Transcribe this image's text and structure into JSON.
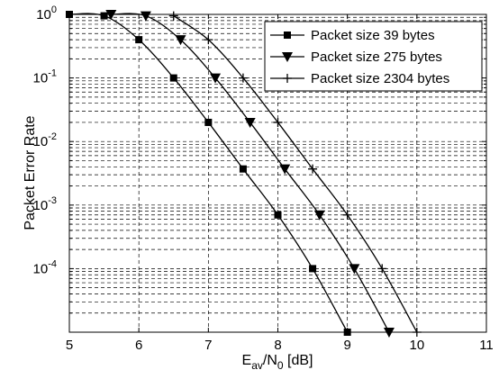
{
  "chart_data": {
    "type": "line",
    "xlabel": {
      "base": "E",
      "sub1": "av",
      "mid": "/N",
      "sub2": "0",
      "tail": " [dB]"
    },
    "ylabel": "Packet Error Rate",
    "xlim": [
      5,
      11
    ],
    "ylim": [
      1e-05,
      1
    ],
    "y_scale": "log",
    "x_ticks": [
      "5",
      "6",
      "7",
      "8",
      "9",
      "10",
      "11"
    ],
    "y_ticks": [
      {
        "base": "10",
        "exp": "0",
        "value": 1
      },
      {
        "base": "10",
        "exp": "-1",
        "value": 0.1
      },
      {
        "base": "10",
        "exp": "-2",
        "value": 0.01
      },
      {
        "base": "10",
        "exp": "-3",
        "value": 0.001
      },
      {
        "base": "10",
        "exp": "-4",
        "value": 0.0001
      }
    ],
    "grid": true,
    "legend_position": "top-right",
    "series": [
      {
        "name": "Packet size 39 bytes",
        "marker": "square",
        "x": [
          5,
          5.5,
          6,
          6.5,
          7,
          7.5,
          8,
          8.5,
          9
        ],
        "y": [
          1,
          0.95,
          0.4,
          0.1,
          0.02,
          0.0037,
          0.0007,
          0.0001,
          1e-05
        ]
      },
      {
        "name": "Packet size 275 bytes",
        "marker": "triangle-down",
        "x": [
          5.6,
          6.1,
          6.6,
          7.1,
          7.6,
          8.1,
          8.6,
          9.1,
          9.6
        ],
        "y": [
          1,
          0.95,
          0.4,
          0.1,
          0.02,
          0.0037,
          0.0007,
          0.0001,
          1e-05
        ]
      },
      {
        "name": "Packet size 2304 bytes",
        "marker": "plus",
        "x": [
          6.5,
          7,
          7.5,
          8,
          8.5,
          9,
          9.5,
          10
        ],
        "y": [
          0.95,
          0.4,
          0.1,
          0.02,
          0.0037,
          0.0007,
          0.0001,
          1e-05
        ]
      }
    ]
  }
}
